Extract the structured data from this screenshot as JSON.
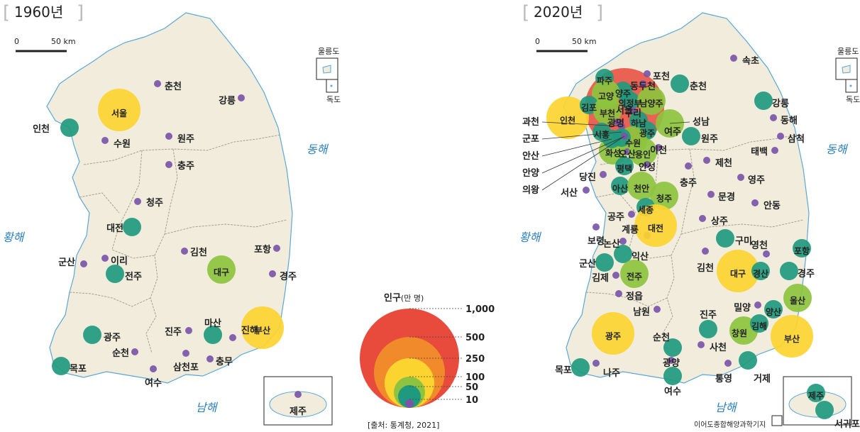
{
  "maps": {
    "left": {
      "title": "1960년"
    },
    "right": {
      "title": "2020년"
    }
  },
  "scale": {
    "zero": "0",
    "km": "50 km"
  },
  "islands": {
    "ulleungdo": "울릉도",
    "dokdo": "독도"
  },
  "seas": {
    "east": "동해",
    "west": "황해",
    "south": "남해"
  },
  "colors": {
    "land": "#f1ecdc",
    "boundary": "#a8a193",
    "coast": "#5aa7d8",
    "size_10": "#7a55a8",
    "size_50": "#1f9a7e",
    "size_100": "#8dc33e",
    "size_250": "#fcd430",
    "size_500": "#f08a2a",
    "size_1000": "#e84a3c"
  },
  "legend": {
    "title": "인구",
    "unit": "(만 명)",
    "values": [
      "1,000",
      "500",
      "250",
      "100",
      "50",
      "10"
    ],
    "source": "[출처: 통계청, 2021]"
  },
  "cities1960": [
    {
      "name": "서울",
      "size": "250"
    },
    {
      "name": "인천",
      "size": "50"
    },
    {
      "name": "수원",
      "size": "10"
    },
    {
      "name": "춘천",
      "size": "10"
    },
    {
      "name": "원주",
      "size": "10"
    },
    {
      "name": "강릉",
      "size": "10"
    },
    {
      "name": "충주",
      "size": "10"
    },
    {
      "name": "청주",
      "size": "10"
    },
    {
      "name": "대전",
      "size": "50"
    },
    {
      "name": "이리",
      "size": "10"
    },
    {
      "name": "군산",
      "size": "10"
    },
    {
      "name": "전주",
      "size": "50"
    },
    {
      "name": "김천",
      "size": "10"
    },
    {
      "name": "대구",
      "size": "100"
    },
    {
      "name": "포항",
      "size": "10"
    },
    {
      "name": "경주",
      "size": "10"
    },
    {
      "name": "광주",
      "size": "50"
    },
    {
      "name": "순천",
      "size": "10"
    },
    {
      "name": "목포",
      "size": "50"
    },
    {
      "name": "여수",
      "size": "10"
    },
    {
      "name": "진주",
      "size": "10"
    },
    {
      "name": "마산",
      "size": "50"
    },
    {
      "name": "진해",
      "size": "10"
    },
    {
      "name": "부산",
      "size": "250"
    },
    {
      "name": "삼천포",
      "size": "10"
    },
    {
      "name": "충무",
      "size": "10"
    },
    {
      "name": "제주",
      "size": "10"
    }
  ],
  "cities2020": [
    {
      "name": "서울",
      "size": "1000"
    },
    {
      "name": "인천",
      "size": "250"
    },
    {
      "name": "파주",
      "size": "50"
    },
    {
      "name": "포천",
      "size": "10"
    },
    {
      "name": "양주",
      "size": "50"
    },
    {
      "name": "동두천",
      "size": "10"
    },
    {
      "name": "고양",
      "size": "100"
    },
    {
      "name": "의정부",
      "size": "50"
    },
    {
      "name": "남양주",
      "size": "100"
    },
    {
      "name": "김포",
      "size": "50"
    },
    {
      "name": "부천",
      "size": "100"
    },
    {
      "name": "구리",
      "size": "10"
    },
    {
      "name": "하남",
      "size": "50"
    },
    {
      "name": "광명",
      "size": "10"
    },
    {
      "name": "시흥",
      "size": "50"
    },
    {
      "name": "광주",
      "size": "50"
    },
    {
      "name": "수원",
      "size": "100"
    },
    {
      "name": "화성",
      "size": "100"
    },
    {
      "name": "오산",
      "size": "10"
    },
    {
      "name": "용인",
      "size": "100"
    },
    {
      "name": "이천",
      "size": "10"
    },
    {
      "name": "평택",
      "size": "50"
    },
    {
      "name": "안성",
      "size": "10"
    },
    {
      "name": "여주",
      "size": "10"
    },
    {
      "name": "과천",
      "size": "10"
    },
    {
      "name": "군포",
      "size": "10"
    },
    {
      "name": "안산",
      "size": "50"
    },
    {
      "name": "안양",
      "size": "50"
    },
    {
      "name": "의왕",
      "size": "10"
    },
    {
      "name": "성남",
      "size": "100"
    },
    {
      "name": "속초",
      "size": "10"
    },
    {
      "name": "춘천",
      "size": "50"
    },
    {
      "name": "강릉",
      "size": "50"
    },
    {
      "name": "원주",
      "size": "50"
    },
    {
      "name": "동해",
      "size": "10"
    },
    {
      "name": "삼척",
      "size": "10"
    },
    {
      "name": "태백",
      "size": "10"
    },
    {
      "name": "제천",
      "size": "10"
    },
    {
      "name": "충주",
      "size": "10"
    },
    {
      "name": "영주",
      "size": "10"
    },
    {
      "name": "당진",
      "size": "10"
    },
    {
      "name": "서산",
      "size": "10"
    },
    {
      "name": "아산",
      "size": "50"
    },
    {
      "name": "천안",
      "size": "100"
    },
    {
      "name": "청주",
      "size": "100"
    },
    {
      "name": "세종",
      "size": "50"
    },
    {
      "name": "문경",
      "size": "10"
    },
    {
      "name": "안동",
      "size": "10"
    },
    {
      "name": "공주",
      "size": "10"
    },
    {
      "name": "계룡",
      "size": "10"
    },
    {
      "name": "대전",
      "size": "250"
    },
    {
      "name": "상주",
      "size": "10"
    },
    {
      "name": "보령",
      "size": "10"
    },
    {
      "name": "논산",
      "size": "10"
    },
    {
      "name": "구미",
      "size": "50"
    },
    {
      "name": "영천",
      "size": "10"
    },
    {
      "name": "포항",
      "size": "50"
    },
    {
      "name": "익산",
      "size": "50"
    },
    {
      "name": "군산",
      "size": "50"
    },
    {
      "name": "김천",
      "size": "10"
    },
    {
      "name": "대구",
      "size": "250"
    },
    {
      "name": "경산",
      "size": "50"
    },
    {
      "name": "경주",
      "size": "50"
    },
    {
      "name": "김제",
      "size": "10"
    },
    {
      "name": "전주",
      "size": "100"
    },
    {
      "name": "정읍",
      "size": "10"
    },
    {
      "name": "울산",
      "size": "100"
    },
    {
      "name": "밀양",
      "size": "10"
    },
    {
      "name": "양산",
      "size": "50"
    },
    {
      "name": "남원",
      "size": "10"
    },
    {
      "name": "진주",
      "size": "50"
    },
    {
      "name": "광주",
      "size": "250"
    },
    {
      "name": "창원",
      "size": "100"
    },
    {
      "name": "김해",
      "size": "50"
    },
    {
      "name": "부산",
      "size": "250"
    },
    {
      "name": "순천",
      "size": "50"
    },
    {
      "name": "사천",
      "size": "10"
    },
    {
      "name": "광양",
      "size": "10"
    },
    {
      "name": "목포",
      "size": "50"
    },
    {
      "name": "나주",
      "size": "10"
    },
    {
      "name": "여수",
      "size": "50"
    },
    {
      "name": "통영",
      "size": "10"
    },
    {
      "name": "거제",
      "size": "50"
    },
    {
      "name": "제주",
      "size": "50"
    },
    {
      "name": "서귀포",
      "size": "50"
    }
  ],
  "credit": "이어도종합해양과학기지"
}
